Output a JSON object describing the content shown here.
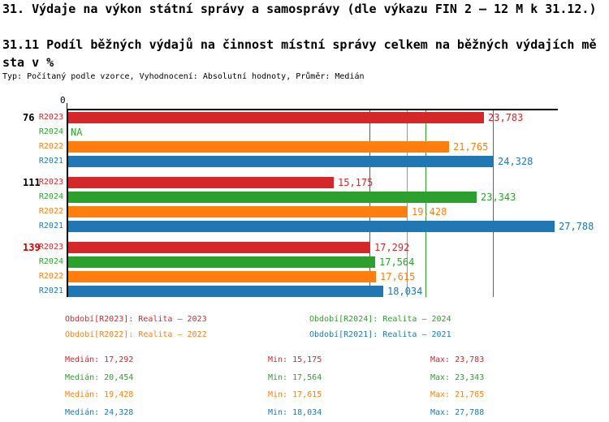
{
  "header": {
    "title": "31. Výdaje na výkon státní správy a samosprávy (dle výkazu FIN 2 – 12 M k 31.12.)",
    "subtitle": "31.11 Podíl běžných výdajů na činnost místní správy celkem na běžných výdajích města v %",
    "meta": "Typ: Počítaný podle vzorce, Vyhodnocení: Absolutní hodnoty, Průměr: Medián"
  },
  "colors": {
    "R2023": "#d62728",
    "R2024": "#2ca02c",
    "R2022": "#ff7f0e",
    "R2021": "#1f77b4",
    "axis": "#000000",
    "group_label_default": "#000000",
    "group_label_highlight": "#cc0000",
    "background": "#ffffff"
  },
  "chart_data": {
    "type": "bar",
    "orientation": "horizontal",
    "origin_tick_label": "0",
    "series_order": [
      "R2023",
      "R2024",
      "R2022",
      "R2021"
    ],
    "groups": [
      {
        "label": "76",
        "highlight": false,
        "bars": [
          {
            "series": "R2023",
            "value": 23783,
            "display": "23,783"
          },
          {
            "series": "R2024",
            "value": null,
            "display": "NA"
          },
          {
            "series": "R2022",
            "value": 21765,
            "display": "21,765"
          },
          {
            "series": "R2021",
            "value": 24328,
            "display": "24,328"
          }
        ]
      },
      {
        "label": "111",
        "highlight": false,
        "bars": [
          {
            "series": "R2023",
            "value": 15175,
            "display": "15,175"
          },
          {
            "series": "R2024",
            "value": 23343,
            "display": "23,343"
          },
          {
            "series": "R2022",
            "value": 19428,
            "display": "19,428"
          },
          {
            "series": "R2021",
            "value": 27788,
            "display": "27,788"
          }
        ]
      },
      {
        "label": "139",
        "highlight": true,
        "bars": [
          {
            "series": "R2023",
            "value": 17292,
            "display": "17,292"
          },
          {
            "series": "R2024",
            "value": 17564,
            "display": "17,564"
          },
          {
            "series": "R2022",
            "value": 17615,
            "display": "17,615"
          },
          {
            "series": "R2021",
            "value": 18034,
            "display": "18,034"
          }
        ]
      }
    ],
    "median_lines": [
      {
        "series": "R2023",
        "value": 17292
      },
      {
        "series": "R2022",
        "value": 19428
      },
      {
        "series": "R2024",
        "value": 20454
      },
      {
        "series": "R2021",
        "value": 24328
      }
    ]
  },
  "legend": {
    "items": [
      {
        "series": "R2023",
        "label": "Období[R2023]: Realita – 2023"
      },
      {
        "series": "R2024",
        "label": "Období[R2024]: Realita – 2024"
      },
      {
        "series": "R2022",
        "label": "Období[R2022]: Realita – 2022"
      },
      {
        "series": "R2021",
        "label": "Období[R2021]: Realita – 2021"
      }
    ]
  },
  "stats": {
    "rows": [
      {
        "series": "R2023",
        "median": "Medián: 17,292",
        "min": "Min: 15,175",
        "max": "Max: 23,783"
      },
      {
        "series": "R2024",
        "median": "Medián: 20,454",
        "min": "Min: 17,564",
        "max": "Max: 23,343"
      },
      {
        "series": "R2022",
        "median": "Medián: 19,428",
        "min": "Min: 17,615",
        "max": "Max: 21,765"
      },
      {
        "series": "R2021",
        "median": "Medián: 24,328",
        "min": "Min: 18,034",
        "max": "Max: 27,788"
      }
    ]
  }
}
